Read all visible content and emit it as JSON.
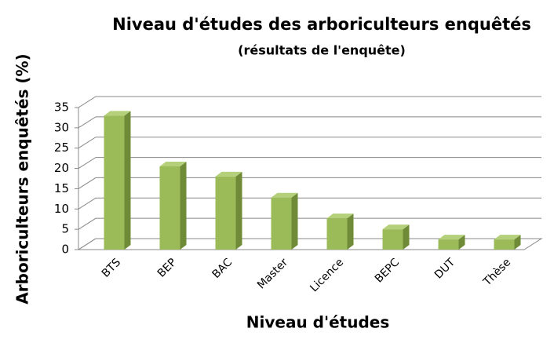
{
  "chart_data": {
    "type": "bar3d",
    "title": "Niveau d'études des arboriculteurs enquêtés",
    "subtitle": "(résultats de l'enquête)",
    "x_label": "Niveau d'études",
    "y_label": "Arboriculteurs enquêtés (%)",
    "categories": [
      "BTS",
      "BEP",
      "BAC",
      "Master",
      "Licence",
      "BEPC",
      "DUT",
      "Thèse"
    ],
    "values": [
      33,
      20.5,
      18,
      12.8,
      7.7,
      5,
      2.5,
      2.5
    ],
    "color": "#9bbb59",
    "ylim": [
      0,
      35
    ],
    "yticks": [
      0,
      5,
      10,
      15,
      20,
      25,
      30,
      35
    ],
    "grid": true
  }
}
